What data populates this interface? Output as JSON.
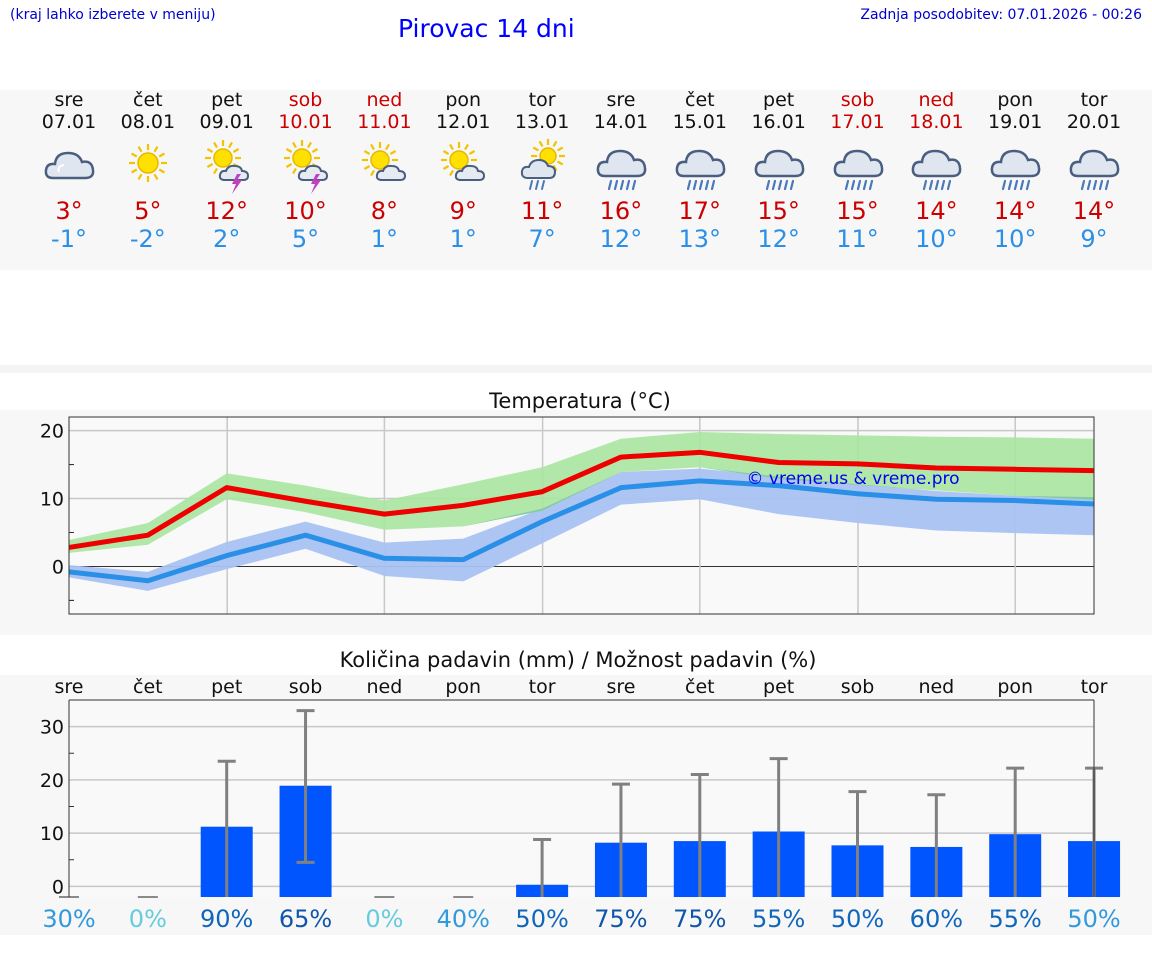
{
  "header": {
    "hint": "(kraj lahko izberete v meniju)",
    "title": "Pirovac 14 dni",
    "updated": "Zadnja posodobitev: 07.01.2026 - 00:26"
  },
  "forecast": [
    {
      "day": "sre",
      "date": "07.01",
      "icon": "cloud-icon",
      "max": "3°",
      "min": "-1°",
      "weekend": false
    },
    {
      "day": "čet",
      "date": "08.01",
      "icon": "sun-icon",
      "max": "5°",
      "min": "-2°",
      "weekend": false
    },
    {
      "day": "pet",
      "date": "09.01",
      "icon": "sun-thunder-icon",
      "max": "12°",
      "min": "2°",
      "weekend": false
    },
    {
      "day": "sob",
      "date": "10.01",
      "icon": "sun-thunder-icon",
      "max": "10°",
      "min": "5°",
      "weekend": true
    },
    {
      "day": "ned",
      "date": "11.01",
      "icon": "sun-cloud-icon",
      "max": "8°",
      "min": "1°",
      "weekend": true
    },
    {
      "day": "pon",
      "date": "12.01",
      "icon": "sun-cloud-icon",
      "max": "9°",
      "min": "1°",
      "weekend": false
    },
    {
      "day": "tor",
      "date": "13.01",
      "icon": "sun-cloud-rain-icon",
      "max": "11°",
      "min": "7°",
      "weekend": false
    },
    {
      "day": "sre",
      "date": "14.01",
      "icon": "rain-cloud-icon",
      "max": "16°",
      "min": "12°",
      "weekend": false
    },
    {
      "day": "čet",
      "date": "15.01",
      "icon": "rain-cloud-icon",
      "max": "17°",
      "min": "13°",
      "weekend": false
    },
    {
      "day": "pet",
      "date": "16.01",
      "icon": "rain-cloud-icon",
      "max": "15°",
      "min": "12°",
      "weekend": false
    },
    {
      "day": "sob",
      "date": "17.01",
      "icon": "rain-cloud-icon",
      "max": "15°",
      "min": "11°",
      "weekend": true
    },
    {
      "day": "ned",
      "date": "18.01",
      "icon": "rain-cloud-icon",
      "max": "14°",
      "min": "10°",
      "weekend": true
    },
    {
      "day": "pon",
      "date": "19.01",
      "icon": "rain-cloud-icon",
      "max": "14°",
      "min": "10°",
      "weekend": false
    },
    {
      "day": "tor",
      "date": "20.01",
      "icon": "rain-cloud-icon",
      "max": "14°",
      "min": "9°",
      "weekend": false
    }
  ],
  "colors": {
    "max_line": "#ee0000",
    "min_line": "#2a8fe6",
    "max_band": "#a8e4a0",
    "min_band": "#a9c2f2",
    "overlap_band": "#7dc4aa",
    "bar": "#0055ff",
    "whisker": "#808080"
  },
  "chart_data": [
    {
      "type": "line",
      "title": "Temperatura (°C)",
      "ylim": [
        -7,
        22
      ],
      "yticks": [
        0,
        10,
        20
      ],
      "x": [
        0,
        1,
        2,
        3,
        4,
        5,
        6,
        7,
        8,
        9,
        10,
        11,
        12,
        13
      ],
      "series": [
        {
          "name": "max",
          "values": [
            2.8,
            4.6,
            11.6,
            9.6,
            7.7,
            9.0,
            11.0,
            16.1,
            16.8,
            15.3,
            15.1,
            14.5,
            14.3,
            14.1
          ]
        },
        {
          "name": "min",
          "values": [
            -0.8,
            -2.1,
            1.6,
            4.6,
            1.2,
            1.0,
            6.6,
            11.6,
            12.6,
            11.9,
            10.7,
            9.9,
            9.7,
            9.2
          ]
        }
      ],
      "bands": [
        {
          "name": "max_range",
          "low": [
            2.0,
            3.2,
            9.9,
            8.0,
            5.4,
            5.9,
            8.2,
            13.9,
            14.6,
            12.9,
            12.0,
            11.2,
            10.4,
            9.8
          ],
          "high": [
            3.9,
            6.4,
            13.7,
            11.9,
            9.7,
            12.1,
            14.6,
            18.8,
            19.8,
            19.5,
            19.3,
            19.1,
            19.0,
            18.8
          ]
        },
        {
          "name": "min_range",
          "low": [
            -1.6,
            -3.6,
            -0.4,
            2.6,
            -1.4,
            -2.2,
            3.4,
            9.1,
            9.9,
            7.7,
            6.4,
            5.3,
            4.9,
            4.6
          ],
          "high": [
            0.2,
            -0.8,
            3.6,
            6.6,
            3.5,
            4.1,
            8.5,
            13.9,
            14.4,
            13.2,
            12.1,
            11.1,
            10.4,
            10.2
          ]
        }
      ],
      "annotation": "© vreme.us & vreme.pro"
    },
    {
      "type": "bar",
      "title": "Količina padavin (mm) / Možnost padavin (%)",
      "categories": [
        "sre",
        "čet",
        "pet",
        "sob",
        "ned",
        "pon",
        "tor",
        "sre",
        "čet",
        "pet",
        "sob",
        "ned",
        "pon",
        "tor"
      ],
      "ylim": [
        -2,
        35
      ],
      "yticks": [
        0,
        10,
        20,
        30
      ],
      "values": [
        0,
        0,
        11.2,
        18.9,
        0,
        0,
        0.3,
        8.2,
        8.5,
        10.3,
        7.7,
        7.4,
        9.8,
        8.5
      ],
      "error_low": [
        0,
        0,
        0,
        4.5,
        0,
        0,
        0,
        0,
        0,
        0,
        0,
        0,
        0,
        0
      ],
      "error_high": [
        0,
        0,
        23.5,
        33.0,
        0,
        0,
        8.8,
        19.2,
        21.0,
        24.0,
        17.8,
        17.2,
        22.2,
        22.2
      ],
      "probability": [
        "30%",
        "0%",
        "90%",
        "65%",
        "0%",
        "40%",
        "50%",
        "75%",
        "75%",
        "55%",
        "50%",
        "60%",
        "55%",
        "50%"
      ],
      "probability_colors": [
        "#3399dd",
        "#66ccdd",
        "#1166bb",
        "#1155aa",
        "#66ccdd",
        "#3399dd",
        "#1166bb",
        "#1155aa",
        "#1155aa",
        "#1166bb",
        "#1166bb",
        "#1166bb",
        "#1166bb",
        "#3399dd"
      ]
    }
  ]
}
